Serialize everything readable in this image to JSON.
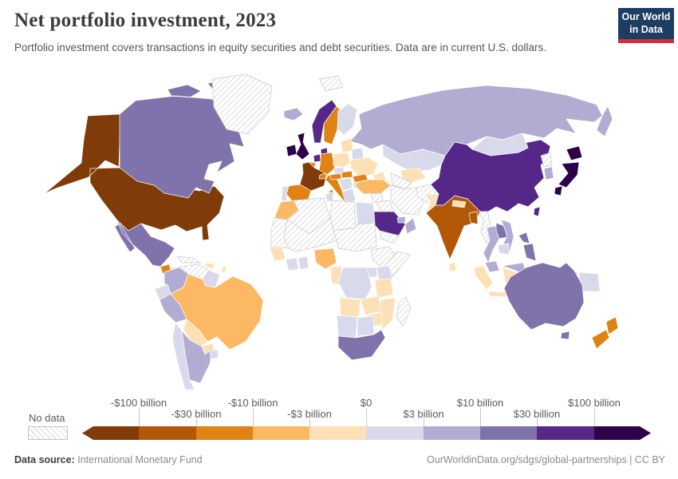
{
  "header": {
    "title": "Net portfolio investment, 2023",
    "subtitle": "Portfolio investment covers transactions in equity securities and debt securities. Data are in current U.S. dollars.",
    "logo_line1": "Our World",
    "logo_line2": "in Data",
    "logo_bg_color": "#1d3d63",
    "logo_accent_color": "#cf303e"
  },
  "legend": {
    "no_data_label": "No data",
    "ticks": [
      "-$100 billion",
      "-$30 billion",
      "-$10 billion",
      "-$3 billion",
      "$0",
      "$3 billion",
      "$10 billion",
      "$30 billion",
      "$100 billion"
    ]
  },
  "footer": {
    "source_label": "Data source:",
    "source_value": "International Monetary Fund",
    "link_text": "OurWorldinData.org/sdgs/global-partnerships | CC BY"
  },
  "chart_data": {
    "type": "choropleth",
    "title": "Net portfolio investment, 2023",
    "year": "2023",
    "unit": "current U.S. dollars",
    "no_data_style": "diagonal-hatch",
    "bins": [
      {
        "range": "less than -$100 billion",
        "color": "#7F3B08"
      },
      {
        "range": "-$100 billion to -$30 billion",
        "color": "#B35806"
      },
      {
        "range": "-$30 billion to -$10 billion",
        "color": "#E08214"
      },
      {
        "range": "-$10 billion to -$3 billion",
        "color": "#FDB863"
      },
      {
        "range": "-$3 billion to $0",
        "color": "#FEE0B6"
      },
      {
        "range": "$0 to $3 billion",
        "color": "#D8DAEB"
      },
      {
        "range": "$3 billion to $10 billion",
        "color": "#B2ABD2"
      },
      {
        "range": "$10 billion to $30 billion",
        "color": "#8073AC"
      },
      {
        "range": "$30 billion to $100 billion",
        "color": "#542788"
      },
      {
        "range": "more than $100 billion",
        "color": "#2D004B"
      }
    ],
    "regions": [
      {
        "id": "united-states",
        "name": "United States",
        "bin": 0
      },
      {
        "id": "france",
        "name": "France",
        "bin": 0
      },
      {
        "id": "india",
        "name": "India",
        "bin": 1
      },
      {
        "id": "bangladesh",
        "name": "Bangladesh",
        "bin": 1
      },
      {
        "id": "sweden",
        "name": "Sweden",
        "bin": 2
      },
      {
        "id": "germany",
        "name": "Germany",
        "bin": 2
      },
      {
        "id": "italy",
        "name": "Italy",
        "bin": 2
      },
      {
        "id": "spain",
        "name": "Spain",
        "bin": 2
      },
      {
        "id": "romania",
        "name": "Romania",
        "bin": 2
      },
      {
        "id": "hungary",
        "name": "Hungary",
        "bin": 2
      },
      {
        "id": "belgium",
        "name": "Belgium",
        "bin": 2
      },
      {
        "id": "switzerland",
        "name": "Switzerland",
        "bin": 2
      },
      {
        "id": "austria",
        "name": "Austria",
        "bin": 2
      },
      {
        "id": "guatemala",
        "name": "Guatemala",
        "bin": 2
      },
      {
        "id": "new-zealand",
        "name": "New Zealand",
        "bin": 2
      },
      {
        "id": "brazil",
        "name": "Brazil",
        "bin": 3
      },
      {
        "id": "turkey",
        "name": "Turkey",
        "bin": 3
      },
      {
        "id": "nigeria",
        "name": "Nigeria",
        "bin": 3
      },
      {
        "id": "morocco",
        "name": "Morocco",
        "bin": 3
      },
      {
        "id": "bolivia",
        "name": "Bolivia",
        "bin": 4
      },
      {
        "id": "paraguay",
        "name": "Paraguay",
        "bin": 4
      },
      {
        "id": "honduras-nicaragua",
        "name": "Honduras and Nicaragua",
        "bin": 4
      },
      {
        "id": "costa-rica-panama",
        "name": "Costa Rica and Panama",
        "bin": 4
      },
      {
        "id": "hispaniola",
        "name": "Haiti and Dominican Republic",
        "bin": 4
      },
      {
        "id": "lesser-antilles",
        "name": "Lesser Antilles",
        "bin": 4
      },
      {
        "id": "poland",
        "name": "Poland",
        "bin": 4
      },
      {
        "id": "ukraine",
        "name": "Ukraine",
        "bin": 4
      },
      {
        "id": "baltic-states",
        "name": "Baltic states",
        "bin": 4
      },
      {
        "id": "uzbekistan",
        "name": "Uzbekistan",
        "bin": 4
      },
      {
        "id": "caucasus",
        "name": "Caucasus states",
        "bin": 4
      },
      {
        "id": "israel-jordan",
        "name": "Israel and Jordan",
        "bin": 4
      },
      {
        "id": "pakistan",
        "name": "Pakistan",
        "bin": 4
      },
      {
        "id": "nepal",
        "name": "Nepal",
        "bin": 4
      },
      {
        "id": "sri-lanka",
        "name": "Sri Lanka",
        "bin": 4
      },
      {
        "id": "indonesia",
        "name": "Indonesia",
        "bin": 4
      },
      {
        "id": "senegal-guinea",
        "name": "Senegal and Guinea",
        "bin": 4
      },
      {
        "id": "cameroon-gabon",
        "name": "Cameroon and Gabon",
        "bin": 4
      },
      {
        "id": "tanzania",
        "name": "Tanzania",
        "bin": 4
      },
      {
        "id": "angola",
        "name": "Angola",
        "bin": 4
      },
      {
        "id": "zambia",
        "name": "Zambia",
        "bin": 4
      },
      {
        "id": "mozambique",
        "name": "Mozambique",
        "bin": 4
      },
      {
        "id": "zimbabwe",
        "name": "Zimbabwe",
        "bin": 4
      },
      {
        "id": "chile",
        "name": "Chile",
        "bin": 5
      },
      {
        "id": "ecuador",
        "name": "Ecuador",
        "bin": 5
      },
      {
        "id": "uruguay",
        "name": "Uruguay",
        "bin": 5
      },
      {
        "id": "guyana-suriname",
        "name": "Guyana and Suriname",
        "bin": 5
      },
      {
        "id": "portugal",
        "name": "Portugal",
        "bin": 5
      },
      {
        "id": "finland",
        "name": "Finland",
        "bin": 5
      },
      {
        "id": "greece",
        "name": "Greece",
        "bin": 5
      },
      {
        "id": "bulgaria",
        "name": "Bulgaria",
        "bin": 5
      },
      {
        "id": "balkans",
        "name": "Western Balkans",
        "bin": 5
      },
      {
        "id": "belarus",
        "name": "Belarus",
        "bin": 5
      },
      {
        "id": "czechia-slovakia",
        "name": "Czechia and Slovakia",
        "bin": 5
      },
      {
        "id": "tunisia",
        "name": "Tunisia",
        "bin": 5
      },
      {
        "id": "egypt",
        "name": "Egypt",
        "bin": 5
      },
      {
        "id": "kazakhstan",
        "name": "Kazakhstan",
        "bin": 5
      },
      {
        "id": "mongolia",
        "name": "Mongolia",
        "bin": 5
      },
      {
        "id": "dr-congo",
        "name": "Democratic Republic of Congo",
        "bin": 5
      },
      {
        "id": "kenya",
        "name": "Kenya",
        "bin": 5
      },
      {
        "id": "uganda",
        "name": "Uganda",
        "bin": 5
      },
      {
        "id": "ivory-coast",
        "name": "Cote d'Ivoire",
        "bin": 5
      },
      {
        "id": "ghana",
        "name": "Ghana",
        "bin": 5
      },
      {
        "id": "namibia",
        "name": "Namibia",
        "bin": 5
      },
      {
        "id": "botswana",
        "name": "Botswana",
        "bin": 5
      },
      {
        "id": "cambodia",
        "name": "Cambodia",
        "bin": 5
      },
      {
        "id": "papua-new-guinea",
        "name": "Papua New Guinea",
        "bin": 5
      },
      {
        "id": "russia",
        "name": "Russia",
        "bin": 6
      },
      {
        "id": "argentina",
        "name": "Argentina",
        "bin": 6
      },
      {
        "id": "colombia",
        "name": "Colombia",
        "bin": 6
      },
      {
        "id": "peru",
        "name": "Peru",
        "bin": 6
      },
      {
        "id": "iceland",
        "name": "Iceland",
        "bin": 6
      },
      {
        "id": "south-korea",
        "name": "South Korea",
        "bin": 6
      },
      {
        "id": "oman",
        "name": "Oman",
        "bin": 6
      },
      {
        "id": "uae-qatar",
        "name": "United Arab Emirates and Qatar",
        "bin": 6
      },
      {
        "id": "thailand",
        "name": "Thailand",
        "bin": 6
      },
      {
        "id": "vietnam",
        "name": "Vietnam",
        "bin": 6
      },
      {
        "id": "malaysia",
        "name": "Malaysia",
        "bin": 6
      },
      {
        "id": "canada",
        "name": "Canada",
        "bin": 7
      },
      {
        "id": "mexico",
        "name": "Mexico",
        "bin": 7
      },
      {
        "id": "australia",
        "name": "Australia",
        "bin": 7
      },
      {
        "id": "south-africa",
        "name": "South Africa",
        "bin": 7
      },
      {
        "id": "laos",
        "name": "Laos",
        "bin": 7
      },
      {
        "id": "philippines",
        "name": "Philippines",
        "bin": 7
      },
      {
        "id": "china",
        "name": "China",
        "bin": 8
      },
      {
        "id": "saudi-arabia",
        "name": "Saudi Arabia",
        "bin": 8
      },
      {
        "id": "norway",
        "name": "Norway",
        "bin": 8
      },
      {
        "id": "denmark",
        "name": "Denmark",
        "bin": 8
      },
      {
        "id": "netherlands",
        "name": "Netherlands",
        "bin": 8
      },
      {
        "id": "taiwan",
        "name": "Taiwan",
        "bin": 8
      },
      {
        "id": "united-kingdom",
        "name": "United Kingdom",
        "bin": 9
      },
      {
        "id": "ireland",
        "name": "Ireland",
        "bin": 9
      },
      {
        "id": "japan",
        "name": "Japan",
        "bin": 9
      },
      {
        "id": "greenland",
        "name": "Greenland",
        "bin": -1
      },
      {
        "id": "svalbard",
        "name": "Svalbard",
        "bin": -1
      },
      {
        "id": "cuba",
        "name": "Cuba",
        "bin": -1
      },
      {
        "id": "venezuela",
        "name": "Venezuela",
        "bin": -1
      },
      {
        "id": "western-sahara-mauritania",
        "name": "Western Sahara and Mauritania",
        "bin": -1
      },
      {
        "id": "algeria",
        "name": "Algeria",
        "bin": -1
      },
      {
        "id": "libya",
        "name": "Libya",
        "bin": -1
      },
      {
        "id": "mali-niger",
        "name": "Mali and Niger",
        "bin": -1
      },
      {
        "id": "chad-sudan",
        "name": "Chad and Sudan",
        "bin": -1
      },
      {
        "id": "ethiopia",
        "name": "Ethiopia",
        "bin": -1
      },
      {
        "id": "somalia",
        "name": "Somalia",
        "bin": -1
      },
      {
        "id": "madagascar",
        "name": "Madagascar",
        "bin": -1
      },
      {
        "id": "syria",
        "name": "Syria",
        "bin": -1
      },
      {
        "id": "iraq",
        "name": "Iraq",
        "bin": -1
      },
      {
        "id": "iran",
        "name": "Iran",
        "bin": -1
      },
      {
        "id": "afghanistan",
        "name": "Afghanistan",
        "bin": -1
      },
      {
        "id": "turkmenistan",
        "name": "Turkmenistan",
        "bin": -1
      },
      {
        "id": "yemen",
        "name": "Yemen",
        "bin": -1
      },
      {
        "id": "myanmar",
        "name": "Myanmar",
        "bin": -1
      },
      {
        "id": "north-korea",
        "name": "North Korea",
        "bin": -1
      }
    ]
  }
}
